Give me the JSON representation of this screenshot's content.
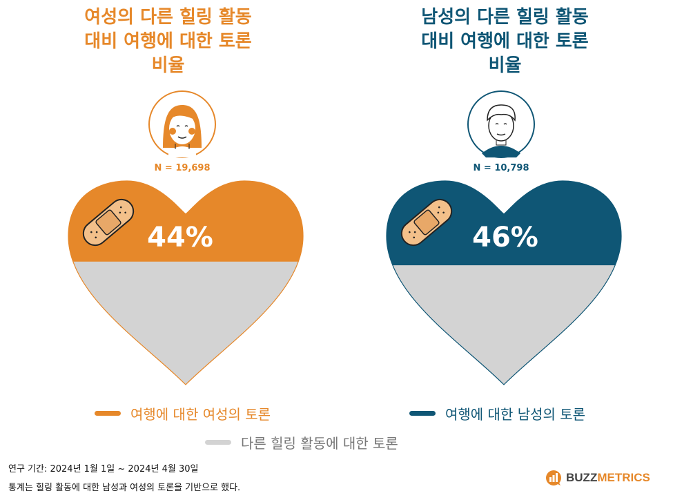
{
  "colors": {
    "female": "#E6882A",
    "male": "#0F5675",
    "other": "#D3D3D3"
  },
  "chart_data": [
    {
      "type": "heart-fill",
      "title": "여성의 다른 힐링 활동\n대비 여행에 대한 토론\n비율",
      "n_label": "N = 19,698",
      "value": 44,
      "value_label": "44%",
      "series": [
        {
          "name": "여행에 대한 여성의 토론",
          "value": 44
        },
        {
          "name": "다른 힐링 활동에 대한 토론",
          "value": 56
        }
      ]
    },
    {
      "type": "heart-fill",
      "title": "남성의 다른 힐링 활동\n대비 여행에 대한 토론\n비율",
      "n_label": "N = 10,798",
      "value": 46,
      "value_label": "46%",
      "series": [
        {
          "name": "여행에 대한 남성의 토론",
          "value": 46
        },
        {
          "name": "다른 힐링 활동에 대한 토론",
          "value": 54
        }
      ]
    }
  ],
  "legend": {
    "female": "여행에 대한 여성의 토론",
    "male": "여행에 대한 남성의 토론",
    "other": "다른 힐링 활동에 대한 토론"
  },
  "footer": {
    "period": "연구 기간: 2024년 1월 1일 ~ 2024년 4월 30일",
    "note": "통계는 힐링 활동에 대한 남성과 여성의 토론을 기반으로 했다."
  },
  "brand": {
    "part1": "BUZZ",
    "part2": "METRICS"
  }
}
